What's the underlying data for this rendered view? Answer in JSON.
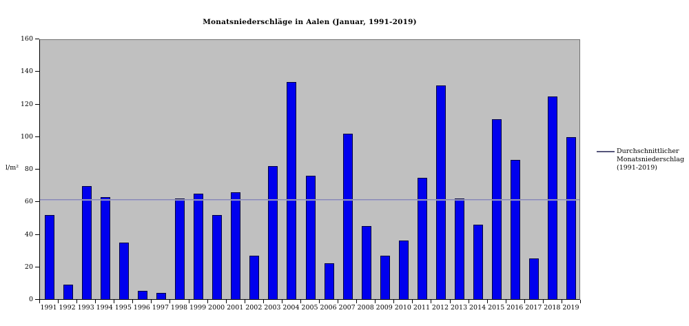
{
  "title": "Monatsniederschläge in Aalen (Januar, 1991-2019)",
  "y_axis": {
    "unit": "l/m²",
    "min": 0,
    "max": 160,
    "step": 20,
    "tick_labels": [
      "0",
      "20",
      "40",
      "60",
      "80",
      "100",
      "120",
      "140",
      "160"
    ]
  },
  "legend": {
    "lines": [
      "Durchschnittlicher",
      "Monatsniederschlag",
      "(1991-2019)"
    ]
  },
  "colors": {
    "bar": "#0000ee",
    "bar_border": "#000040",
    "plot_background": "#c0c0c0",
    "average_line": "#8080ac",
    "legend_key_line": "#55557a",
    "axis": "#000000",
    "page_background": "#ffffff"
  },
  "chart_data": {
    "type": "bar",
    "title": "Monatsniederschläge in Aalen (Januar, 1991-2019)",
    "xlabel": "",
    "ylabel": "l/m²",
    "ylim": [
      0,
      160
    ],
    "ytick_step": 20,
    "grid": false,
    "legend_position": "right",
    "legend_label": "Durchschnittlicher Monatsniederschlag (1991-2019)",
    "average_line": 61.9,
    "categories": [
      "1991",
      "1992",
      "1993",
      "1994",
      "1995",
      "1996",
      "1997",
      "1998",
      "1999",
      "2000",
      "2001",
      "2002",
      "2003",
      "2004",
      "2005",
      "2006",
      "2007",
      "2008",
      "2009",
      "2010",
      "2011",
      "2012",
      "2013",
      "2014",
      "2015",
      "2016",
      "2017",
      "2018",
      "2019"
    ],
    "values": [
      52,
      9,
      70,
      63,
      35,
      5,
      4,
      62,
      65,
      52,
      66,
      27,
      82,
      134,
      76,
      22,
      102,
      45,
      27,
      36,
      75,
      132,
      62,
      46,
      111,
      86,
      25,
      125,
      100
    ]
  }
}
